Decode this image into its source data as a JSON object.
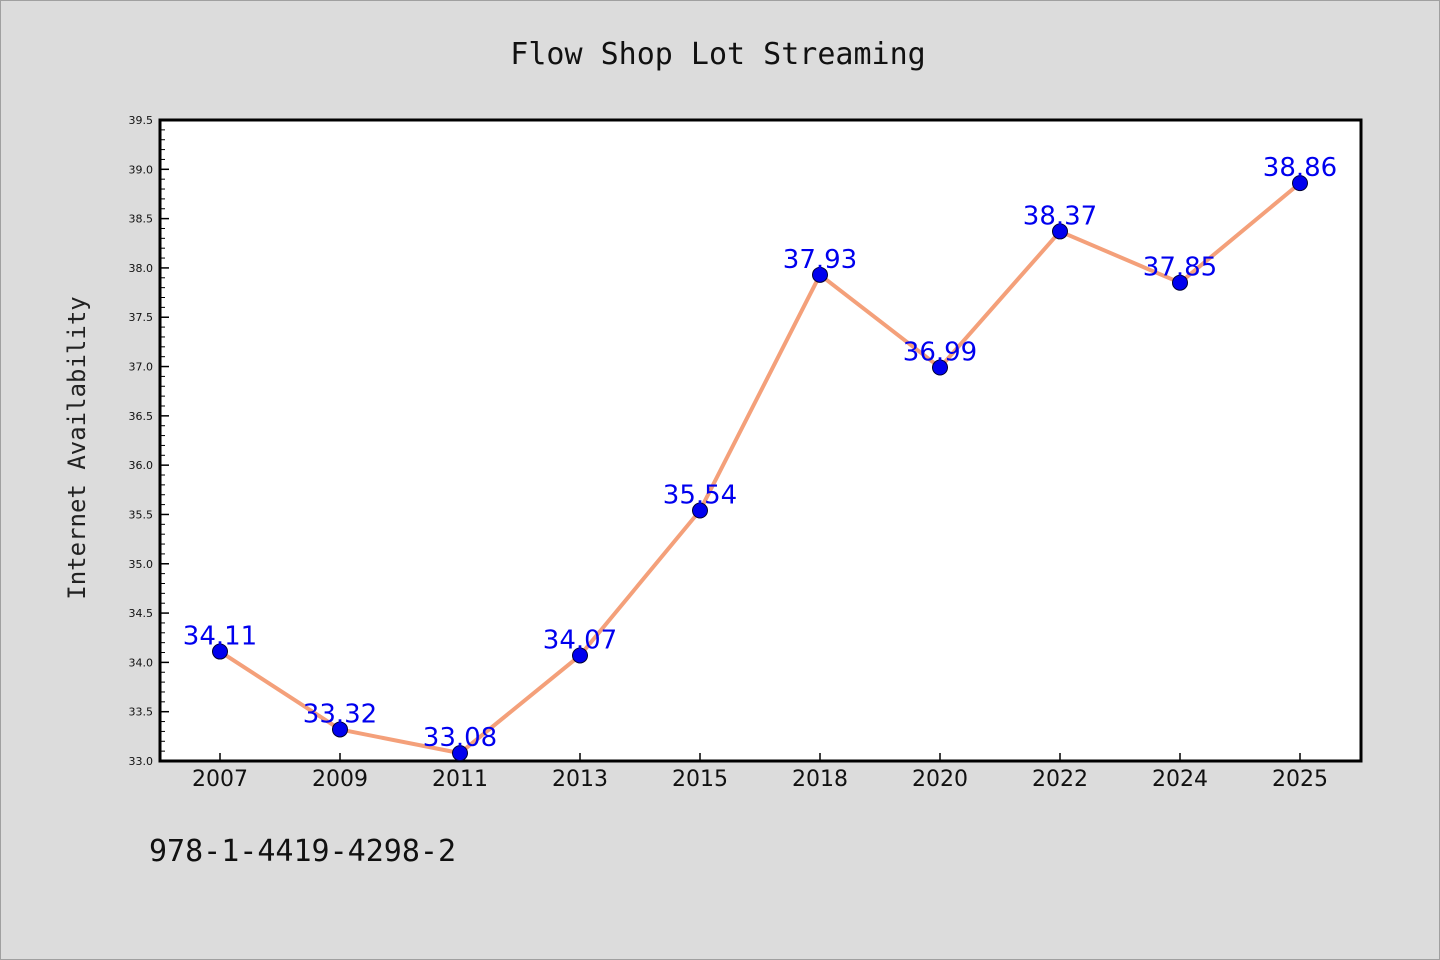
{
  "chart_data": {
    "type": "line",
    "title": "Flow Shop Lot Streaming",
    "xlabel": "",
    "ylabel": "Internet Availability",
    "categories": [
      "2007",
      "2009",
      "2011",
      "2013",
      "2015",
      "2018",
      "2020",
      "2022",
      "2024",
      "2025"
    ],
    "series": [
      {
        "values": [
          34.11,
          33.32,
          33.08,
          34.07,
          35.54,
          37.93,
          36.99,
          38.37,
          37.85,
          38.86
        ],
        "labels": [
          "34.11",
          "33.32",
          "33.08",
          "34.07",
          "35.54",
          "37.93",
          "36.99",
          "38.37",
          "37.85",
          "38.86"
        ],
        "line_color": "#f4a07a",
        "marker_color": "#0000ee",
        "label_color": "#0000ee"
      }
    ],
    "ylim": [
      33.0,
      39.5
    ],
    "yticks": [
      "33.0",
      "33.5",
      "34.0",
      "34.5",
      "35.0",
      "35.5",
      "36.0",
      "36.5",
      "37.0",
      "37.5",
      "38.0",
      "38.5",
      "39.0",
      "39.5"
    ],
    "grid": false,
    "legend": "none"
  },
  "footer": {
    "code": "978-1-4419-4298-2"
  }
}
